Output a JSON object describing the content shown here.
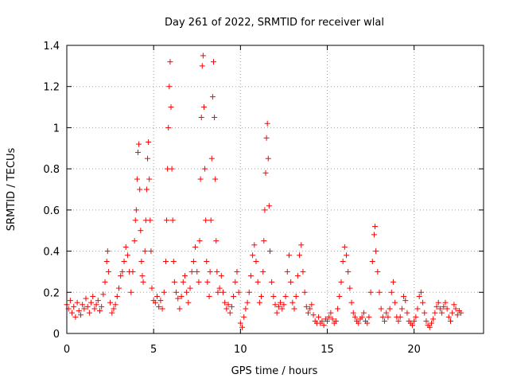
{
  "chart_data": {
    "type": "scatter",
    "title": "Day 261 of 2022, SRMTID for receiver wlal",
    "xlabel": "GPS time / hours",
    "ylabel": "SRMTID / TECUs",
    "xlim": [
      0,
      24
    ],
    "ylim": [
      0,
      1.4
    ],
    "xticks": [
      0,
      5,
      10,
      15,
      20
    ],
    "yticks": [
      0,
      0.2,
      0.4,
      0.6,
      0.8,
      1,
      1.2,
      1.4
    ],
    "xtick_labels": [
      "0",
      "5",
      "10",
      "15",
      "20"
    ],
    "ytick_labels": [
      "0",
      "0.2",
      "0.4",
      "0.6",
      "0.8",
      "1",
      "1.2",
      "1.4"
    ],
    "grid": true,
    "marker": "+",
    "marker_color": "#ff0000",
    "series": [
      {
        "name": "SRMTID",
        "points": [
          [
            0.0,
            0.14
          ],
          [
            0.1,
            0.12
          ],
          [
            0.2,
            0.16
          ],
          [
            0.3,
            0.1
          ],
          [
            0.4,
            0.13
          ],
          [
            0.5,
            0.08
          ],
          [
            0.6,
            0.15
          ],
          [
            0.7,
            0.11
          ],
          [
            0.8,
            0.09
          ],
          [
            0.9,
            0.14
          ],
          [
            1.0,
            0.12
          ],
          [
            1.1,
            0.17
          ],
          [
            1.2,
            0.13
          ],
          [
            1.3,
            0.1
          ],
          [
            1.4,
            0.15
          ],
          [
            1.5,
            0.18
          ],
          [
            1.6,
            0.12
          ],
          [
            1.7,
            0.14
          ],
          [
            1.8,
            0.16
          ],
          [
            1.9,
            0.11
          ],
          [
            2.0,
            0.13
          ],
          [
            2.1,
            0.19
          ],
          [
            2.2,
            0.25
          ],
          [
            2.3,
            0.35
          ],
          [
            2.35,
            0.4
          ],
          [
            2.4,
            0.3
          ],
          [
            2.5,
            0.15
          ],
          [
            2.6,
            0.1
          ],
          [
            2.7,
            0.12
          ],
          [
            2.8,
            0.14
          ],
          [
            2.9,
            0.18
          ],
          [
            3.0,
            0.22
          ],
          [
            3.1,
            0.28
          ],
          [
            3.2,
            0.3
          ],
          [
            3.3,
            0.35
          ],
          [
            3.4,
            0.42
          ],
          [
            3.5,
            0.38
          ],
          [
            3.6,
            0.3
          ],
          [
            3.7,
            0.2
          ],
          [
            3.8,
            0.3
          ],
          [
            3.9,
            0.45
          ],
          [
            3.95,
            0.55
          ],
          [
            4.0,
            0.6
          ],
          [
            4.05,
            0.75
          ],
          [
            4.1,
            0.88
          ],
          [
            4.15,
            0.92
          ],
          [
            4.2,
            0.7
          ],
          [
            4.25,
            0.5
          ],
          [
            4.3,
            0.35
          ],
          [
            4.35,
            0.28
          ],
          [
            4.4,
            0.25
          ],
          [
            4.5,
            0.4
          ],
          [
            4.55,
            0.55
          ],
          [
            4.6,
            0.7
          ],
          [
            4.65,
            0.85
          ],
          [
            4.7,
            0.93
          ],
          [
            4.75,
            0.75
          ],
          [
            4.8,
            0.55
          ],
          [
            4.85,
            0.4
          ],
          [
            4.9,
            0.22
          ],
          [
            5.0,
            0.16
          ],
          [
            5.1,
            0.15
          ],
          [
            5.2,
            0.18
          ],
          [
            5.3,
            0.13
          ],
          [
            5.4,
            0.16
          ],
          [
            5.5,
            0.12
          ],
          [
            5.6,
            0.2
          ],
          [
            5.7,
            0.35
          ],
          [
            5.75,
            0.55
          ],
          [
            5.8,
            0.8
          ],
          [
            5.85,
            1.0
          ],
          [
            5.9,
            1.2
          ],
          [
            5.95,
            1.32
          ],
          [
            6.0,
            1.1
          ],
          [
            6.05,
            0.8
          ],
          [
            6.1,
            0.55
          ],
          [
            6.15,
            0.35
          ],
          [
            6.2,
            0.25
          ],
          [
            6.3,
            0.2
          ],
          [
            6.4,
            0.17
          ],
          [
            6.5,
            0.12
          ],
          [
            6.6,
            0.18
          ],
          [
            6.7,
            0.25
          ],
          [
            6.8,
            0.28
          ],
          [
            6.9,
            0.2
          ],
          [
            7.0,
            0.15
          ],
          [
            7.1,
            0.22
          ],
          [
            7.2,
            0.3
          ],
          [
            7.3,
            0.35
          ],
          [
            7.4,
            0.42
          ],
          [
            7.5,
            0.3
          ],
          [
            7.6,
            0.25
          ],
          [
            7.65,
            0.45
          ],
          [
            7.7,
            0.75
          ],
          [
            7.75,
            1.05
          ],
          [
            7.8,
            1.3
          ],
          [
            7.85,
            1.35
          ],
          [
            7.9,
            1.1
          ],
          [
            7.95,
            0.8
          ],
          [
            8.0,
            0.55
          ],
          [
            8.05,
            0.35
          ],
          [
            8.1,
            0.25
          ],
          [
            8.2,
            0.18
          ],
          [
            8.25,
            0.3
          ],
          [
            8.3,
            0.55
          ],
          [
            8.35,
            0.85
          ],
          [
            8.4,
            1.15
          ],
          [
            8.45,
            1.32
          ],
          [
            8.5,
            1.05
          ],
          [
            8.55,
            0.75
          ],
          [
            8.6,
            0.45
          ],
          [
            8.65,
            0.3
          ],
          [
            8.7,
            0.2
          ],
          [
            8.8,
            0.22
          ],
          [
            8.9,
            0.28
          ],
          [
            9.0,
            0.2
          ],
          [
            9.1,
            0.15
          ],
          [
            9.2,
            0.12
          ],
          [
            9.3,
            0.14
          ],
          [
            9.4,
            0.1
          ],
          [
            9.5,
            0.13
          ],
          [
            9.6,
            0.18
          ],
          [
            9.7,
            0.25
          ],
          [
            9.8,
            0.3
          ],
          [
            9.9,
            0.2
          ],
          [
            10.0,
            0.05
          ],
          [
            10.1,
            0.03
          ],
          [
            10.2,
            0.08
          ],
          [
            10.3,
            0.12
          ],
          [
            10.4,
            0.15
          ],
          [
            10.5,
            0.2
          ],
          [
            10.6,
            0.28
          ],
          [
            10.7,
            0.38
          ],
          [
            10.8,
            0.43
          ],
          [
            10.9,
            0.35
          ],
          [
            11.0,
            0.25
          ],
          [
            11.1,
            0.15
          ],
          [
            11.2,
            0.18
          ],
          [
            11.3,
            0.3
          ],
          [
            11.35,
            0.45
          ],
          [
            11.4,
            0.6
          ],
          [
            11.45,
            0.78
          ],
          [
            11.5,
            0.95
          ],
          [
            11.55,
            1.02
          ],
          [
            11.6,
            0.85
          ],
          [
            11.65,
            0.62
          ],
          [
            11.7,
            0.4
          ],
          [
            11.8,
            0.25
          ],
          [
            11.9,
            0.18
          ],
          [
            12.0,
            0.14
          ],
          [
            12.1,
            0.1
          ],
          [
            12.2,
            0.13
          ],
          [
            12.3,
            0.15
          ],
          [
            12.4,
            0.12
          ],
          [
            12.5,
            0.14
          ],
          [
            12.6,
            0.18
          ],
          [
            12.7,
            0.3
          ],
          [
            12.8,
            0.38
          ],
          [
            12.9,
            0.25
          ],
          [
            13.0,
            0.15
          ],
          [
            13.1,
            0.12
          ],
          [
            13.2,
            0.18
          ],
          [
            13.3,
            0.28
          ],
          [
            13.4,
            0.38
          ],
          [
            13.5,
            0.43
          ],
          [
            13.6,
            0.3
          ],
          [
            13.7,
            0.2
          ],
          [
            13.8,
            0.13
          ],
          [
            13.9,
            0.1
          ],
          [
            14.0,
            0.12
          ],
          [
            14.1,
            0.14
          ],
          [
            14.2,
            0.09
          ],
          [
            14.3,
            0.06
          ],
          [
            14.4,
            0.05
          ],
          [
            14.5,
            0.08
          ],
          [
            14.6,
            0.05
          ],
          [
            14.7,
            0.06
          ],
          [
            14.8,
            0.04
          ],
          [
            14.9,
            0.07
          ],
          [
            15.0,
            0.06
          ],
          [
            15.1,
            0.08
          ],
          [
            15.2,
            0.1
          ],
          [
            15.3,
            0.07
          ],
          [
            15.4,
            0.05
          ],
          [
            15.5,
            0.06
          ],
          [
            15.6,
            0.12
          ],
          [
            15.7,
            0.18
          ],
          [
            15.8,
            0.25
          ],
          [
            15.9,
            0.35
          ],
          [
            16.0,
            0.42
          ],
          [
            16.1,
            0.38
          ],
          [
            16.2,
            0.3
          ],
          [
            16.3,
            0.22
          ],
          [
            16.4,
            0.15
          ],
          [
            16.5,
            0.1
          ],
          [
            16.6,
            0.08
          ],
          [
            16.7,
            0.06
          ],
          [
            16.8,
            0.05
          ],
          [
            16.9,
            0.07
          ],
          [
            17.0,
            0.08
          ],
          [
            17.1,
            0.1
          ],
          [
            17.2,
            0.06
          ],
          [
            17.3,
            0.05
          ],
          [
            17.4,
            0.08
          ],
          [
            17.5,
            0.2
          ],
          [
            17.6,
            0.35
          ],
          [
            17.7,
            0.48
          ],
          [
            17.75,
            0.52
          ],
          [
            17.8,
            0.4
          ],
          [
            17.9,
            0.3
          ],
          [
            18.0,
            0.2
          ],
          [
            18.1,
            0.12
          ],
          [
            18.2,
            0.08
          ],
          [
            18.3,
            0.06
          ],
          [
            18.4,
            0.1
          ],
          [
            18.5,
            0.08
          ],
          [
            18.6,
            0.12
          ],
          [
            18.7,
            0.2
          ],
          [
            18.8,
            0.25
          ],
          [
            18.9,
            0.15
          ],
          [
            19.0,
            0.08
          ],
          [
            19.1,
            0.06
          ],
          [
            19.2,
            0.08
          ],
          [
            19.3,
            0.12
          ],
          [
            19.4,
            0.18
          ],
          [
            19.5,
            0.16
          ],
          [
            19.6,
            0.1
          ],
          [
            19.7,
            0.06
          ],
          [
            19.8,
            0.05
          ],
          [
            19.9,
            0.04
          ],
          [
            20.0,
            0.06
          ],
          [
            20.1,
            0.08
          ],
          [
            20.2,
            0.12
          ],
          [
            20.3,
            0.18
          ],
          [
            20.4,
            0.2
          ],
          [
            20.5,
            0.15
          ],
          [
            20.6,
            0.1
          ],
          [
            20.7,
            0.06
          ],
          [
            20.8,
            0.04
          ],
          [
            20.9,
            0.03
          ],
          [
            21.0,
            0.05
          ],
          [
            21.1,
            0.07
          ],
          [
            21.2,
            0.1
          ],
          [
            21.3,
            0.13
          ],
          [
            21.4,
            0.15
          ],
          [
            21.5,
            0.12
          ],
          [
            21.6,
            0.1
          ],
          [
            21.7,
            0.13
          ],
          [
            21.8,
            0.15
          ],
          [
            21.9,
            0.12
          ],
          [
            22.0,
            0.08
          ],
          [
            22.1,
            0.06
          ],
          [
            22.2,
            0.1
          ],
          [
            22.3,
            0.14
          ],
          [
            22.4,
            0.12
          ],
          [
            22.5,
            0.09
          ],
          [
            22.6,
            0.11
          ],
          [
            22.7,
            0.1
          ]
        ]
      }
    ]
  }
}
